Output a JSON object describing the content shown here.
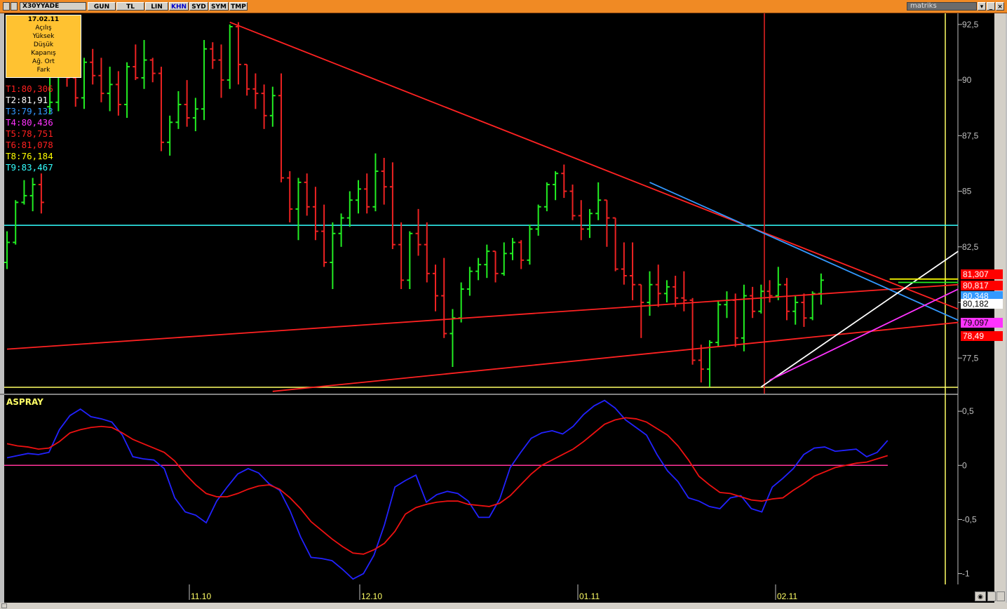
{
  "window": {
    "symbol": "X30YYADE",
    "buttons": [
      "GUN",
      "TL",
      "LIN",
      "KHN",
      "SYD",
      "SYM",
      "TMP"
    ],
    "active_button": "KHN",
    "brand": "matriks"
  },
  "infobox": {
    "date": "17.02.11",
    "labels": [
      "Açılış",
      "Yüksek",
      "Düşük",
      "Kapanış",
      "Ağ. Ort",
      "Fark"
    ]
  },
  "trend_labels": [
    {
      "text": "T1:80,306",
      "color": "#ff2020"
    },
    {
      "text": "T2:81,91",
      "color": "#ffffff"
    },
    {
      "text": "T3:79,133",
      "color": "#3399ff"
    },
    {
      "text": "T4:80,436",
      "color": "#ff33ff"
    },
    {
      "text": "T5:78,751",
      "color": "#ff2020"
    },
    {
      "text": "T6:81,078",
      "color": "#ff2020"
    },
    {
      "text": "T8:76,184",
      "color": "#ffff00"
    },
    {
      "text": "T9:83,467",
      "color": "#33ffff"
    }
  ],
  "price_boxes": [
    {
      "text": "81,307",
      "bg": "#ff0000",
      "fg": "#ffffff"
    },
    {
      "text": "80,817",
      "bg": "#ff0000",
      "fg": "#ffffff"
    },
    {
      "text": "80,348",
      "bg": "#3399ff",
      "fg": "#ffffff"
    },
    {
      "text": "80,182",
      "bg": "#ffffff",
      "fg": "#000000"
    },
    {
      "text": "79,097",
      "bg": "#ff33ff",
      "fg": "#000000"
    },
    {
      "text": "78,49",
      "bg": "#ff0000",
      "fg": "#ffffff"
    }
  ],
  "colors": {
    "up": "#22ee22",
    "down": "#ee2222",
    "grid_yellow": "#ffff66"
  },
  "chart_data": [
    {
      "type": "bar",
      "ohlc": true,
      "xlabels": [
        "11.10",
        "12.10",
        "01.11",
        "02.11"
      ],
      "yticks": [
        "92,5",
        "90",
        "87,5",
        "85",
        "82,5",
        "80",
        "77,5"
      ],
      "ylim": [
        75.9,
        93.0
      ],
      "bars": [
        [
          81.8,
          83.2,
          81.5,
          82.7
        ],
        [
          82.7,
          84.6,
          82.6,
          84.5
        ],
        [
          84.5,
          85.5,
          84.4,
          84.8
        ],
        [
          84.8,
          85.6,
          84.1,
          85.3
        ],
        [
          85.3,
          85.8,
          84.0,
          84.5
        ],
        [
          88.8,
          90.5,
          88.5,
          89.0
        ],
        [
          89.0,
          91.0,
          88.6,
          90.4
        ],
        [
          90.4,
          91.2,
          89.7,
          90.1
        ],
        [
          90.1,
          91.1,
          88.8,
          89.2
        ],
        [
          89.2,
          91.0,
          88.7,
          90.8
        ],
        [
          90.8,
          91.4,
          89.8,
          90.2
        ],
        [
          90.2,
          91.0,
          89.0,
          89.4
        ],
        [
          89.4,
          90.6,
          88.6,
          89.8
        ],
        [
          89.8,
          90.4,
          88.4,
          88.9
        ],
        [
          88.9,
          90.8,
          88.3,
          90.6
        ],
        [
          90.6,
          91.6,
          90.0,
          90.1
        ],
        [
          90.1,
          91.8,
          89.6,
          90.9
        ],
        [
          90.9,
          91.0,
          89.9,
          90.3
        ],
        [
          90.3,
          90.6,
          86.8,
          87.2
        ],
        [
          87.2,
          88.4,
          86.6,
          88.1
        ],
        [
          88.1,
          89.5,
          87.8,
          88.9
        ],
        [
          88.9,
          90.0,
          87.9,
          88.3
        ],
        [
          88.3,
          89.2,
          87.7,
          88.7
        ],
        [
          88.7,
          91.8,
          88.2,
          91.4
        ],
        [
          91.4,
          91.7,
          90.5,
          90.9
        ],
        [
          90.9,
          91.6,
          89.2,
          90.0
        ],
        [
          90.0,
          92.5,
          89.6,
          92.4
        ],
        [
          92.4,
          92.6,
          89.8,
          90.7
        ],
        [
          90.7,
          90.7,
          89.3,
          89.6
        ],
        [
          89.6,
          90.3,
          88.7,
          89.4
        ],
        [
          89.4,
          89.8,
          87.8,
          88.4
        ],
        [
          88.4,
          89.7,
          87.9,
          89.3
        ],
        [
          89.3,
          90.3,
          85.4,
          85.6
        ],
        [
          85.6,
          85.9,
          83.6,
          84.2
        ],
        [
          84.2,
          85.6,
          82.8,
          85.4
        ],
        [
          85.4,
          85.8,
          83.9,
          84.3
        ],
        [
          84.3,
          85.2,
          82.8,
          83.2
        ],
        [
          83.2,
          84.4,
          81.6,
          81.8
        ],
        [
          81.8,
          83.6,
          80.6,
          83.1
        ],
        [
          83.1,
          84.0,
          82.5,
          83.8
        ],
        [
          83.8,
          85.0,
          83.4,
          84.6
        ],
        [
          84.6,
          85.5,
          84.0,
          85.1
        ],
        [
          85.1,
          85.8,
          84.0,
          84.3
        ],
        [
          84.3,
          86.7,
          84.1,
          85.9
        ],
        [
          85.9,
          86.5,
          84.4,
          85.2
        ],
        [
          85.2,
          86.3,
          82.4,
          82.6
        ],
        [
          82.6,
          83.6,
          80.6,
          81.0
        ],
        [
          81.0,
          83.2,
          80.6,
          83.1
        ],
        [
          83.1,
          84.2,
          82.1,
          82.6
        ],
        [
          82.6,
          83.6,
          80.9,
          81.3
        ],
        [
          81.3,
          81.7,
          79.6,
          80.3
        ],
        [
          80.3,
          82.0,
          78.4,
          78.6
        ],
        [
          78.6,
          79.7,
          77.1,
          79.3
        ],
        [
          79.3,
          80.9,
          79.1,
          80.6
        ],
        [
          80.6,
          81.6,
          80.3,
          81.4
        ],
        [
          81.4,
          82.0,
          81.0,
          81.7
        ],
        [
          81.7,
          82.6,
          81.1,
          82.3
        ],
        [
          82.3,
          82.3,
          80.9,
          81.3
        ],
        [
          81.3,
          82.7,
          81.2,
          82.2
        ],
        [
          82.2,
          82.9,
          81.9,
          82.7
        ],
        [
          82.7,
          82.8,
          81.5,
          81.9
        ],
        [
          81.9,
          83.5,
          81.7,
          83.3
        ],
        [
          83.3,
          84.4,
          83.0,
          84.3
        ],
        [
          84.3,
          85.4,
          84.1,
          85.3
        ],
        [
          85.3,
          85.9,
          84.6,
          85.8
        ],
        [
          85.8,
          86.2,
          84.7,
          85.0
        ],
        [
          85.0,
          85.3,
          83.7,
          83.9
        ],
        [
          83.9,
          84.6,
          82.8,
          83.3
        ],
        [
          83.3,
          84.2,
          82.9,
          84.0
        ],
        [
          84.0,
          85.4,
          83.7,
          84.6
        ],
        [
          84.6,
          84.6,
          82.5,
          83.8
        ],
        [
          83.8,
          83.8,
          81.4,
          81.5
        ],
        [
          81.5,
          82.7,
          80.8,
          81.2
        ],
        [
          81.2,
          82.7,
          80.1,
          80.8
        ],
        [
          80.8,
          80.8,
          78.4,
          80.0
        ],
        [
          80.0,
          81.4,
          79.4,
          80.8
        ],
        [
          80.8,
          81.7,
          79.8,
          80.4
        ],
        [
          80.4,
          81.0,
          80.0,
          80.7
        ],
        [
          80.7,
          81.2,
          79.8,
          80.2
        ],
        [
          80.2,
          81.4,
          79.6,
          80.1
        ],
        [
          80.1,
          80.2,
          77.2,
          77.4
        ],
        [
          77.4,
          78.1,
          76.4,
          77.0
        ],
        [
          77.0,
          78.3,
          76.2,
          78.2
        ],
        [
          78.2,
          80.1,
          78.0,
          79.9
        ],
        [
          79.9,
          80.5,
          79.3,
          80.1
        ],
        [
          80.1,
          80.4,
          78.0,
          78.4
        ],
        [
          78.4,
          80.8,
          77.8,
          80.3
        ],
        [
          80.3,
          80.7,
          79.3,
          79.6
        ],
        [
          79.6,
          80.8,
          79.5,
          80.5
        ],
        [
          80.5,
          81.0,
          80.0,
          80.3
        ],
        [
          80.3,
          81.6,
          80.1,
          80.8
        ],
        [
          80.8,
          81.1,
          79.2,
          79.6
        ],
        [
          79.6,
          80.3,
          79.0,
          80.0
        ],
        [
          80.0,
          80.4,
          78.9,
          79.3
        ],
        [
          79.3,
          80.5,
          79.2,
          80.4
        ],
        [
          80.4,
          81.3,
          79.9,
          81.0
        ]
      ]
    },
    {
      "type": "line",
      "title": "ASPRAY",
      "yticks": [
        "0,5",
        "0",
        "-0,5",
        "-1"
      ],
      "ylim": [
        -1.1,
        0.65
      ],
      "series": [
        {
          "color": "#2222ff",
          "values": [
            0.07,
            0.09,
            0.11,
            0.1,
            0.12,
            0.33,
            0.46,
            0.52,
            0.45,
            0.43,
            0.4,
            0.28,
            0.08,
            0.06,
            0.05,
            -0.03,
            -0.3,
            -0.43,
            -0.46,
            -0.53,
            -0.33,
            -0.2,
            -0.08,
            -0.03,
            -0.07,
            -0.17,
            -0.23,
            -0.42,
            -0.66,
            -0.85,
            -0.86,
            -0.88,
            -0.96,
            -1.05,
            -1.0,
            -0.83,
            -0.55,
            -0.2,
            -0.14,
            -0.09,
            -0.34,
            -0.27,
            -0.24,
            -0.26,
            -0.33,
            -0.48,
            -0.48,
            -0.31,
            -0.02,
            0.12,
            0.25,
            0.3,
            0.32,
            0.29,
            0.36,
            0.47,
            0.55,
            0.6,
            0.53,
            0.42,
            0.35,
            0.28,
            0.1,
            -0.05,
            -0.15,
            -0.3,
            -0.33,
            -0.38,
            -0.4,
            -0.3,
            -0.28,
            -0.4,
            -0.43,
            -0.2,
            -0.12,
            -0.03,
            0.1,
            0.16,
            0.17,
            0.13,
            0.14,
            0.15,
            0.08,
            0.12,
            0.23
          ]
        },
        {
          "color": "#ee1111",
          "values": [
            0.2,
            0.18,
            0.17,
            0.15,
            0.16,
            0.22,
            0.3,
            0.33,
            0.35,
            0.36,
            0.35,
            0.3,
            0.24,
            0.2,
            0.16,
            0.12,
            0.04,
            -0.08,
            -0.18,
            -0.26,
            -0.29,
            -0.29,
            -0.26,
            -0.22,
            -0.19,
            -0.18,
            -0.22,
            -0.3,
            -0.4,
            -0.52,
            -0.6,
            -0.68,
            -0.75,
            -0.81,
            -0.82,
            -0.78,
            -0.72,
            -0.61,
            -0.45,
            -0.39,
            -0.36,
            -0.34,
            -0.33,
            -0.33,
            -0.36,
            -0.37,
            -0.38,
            -0.35,
            -0.28,
            -0.18,
            -0.08,
            0.0,
            0.05,
            0.1,
            0.15,
            0.22,
            0.3,
            0.38,
            0.42,
            0.44,
            0.43,
            0.4,
            0.34,
            0.28,
            0.18,
            0.05,
            -0.1,
            -0.18,
            -0.25,
            -0.26,
            -0.29,
            -0.32,
            -0.33,
            -0.31,
            -0.3,
            -0.23,
            -0.17,
            -0.1,
            -0.06,
            -0.02,
            0.0,
            0.02,
            0.03,
            0.06,
            0.09
          ]
        }
      ]
    }
  ]
}
